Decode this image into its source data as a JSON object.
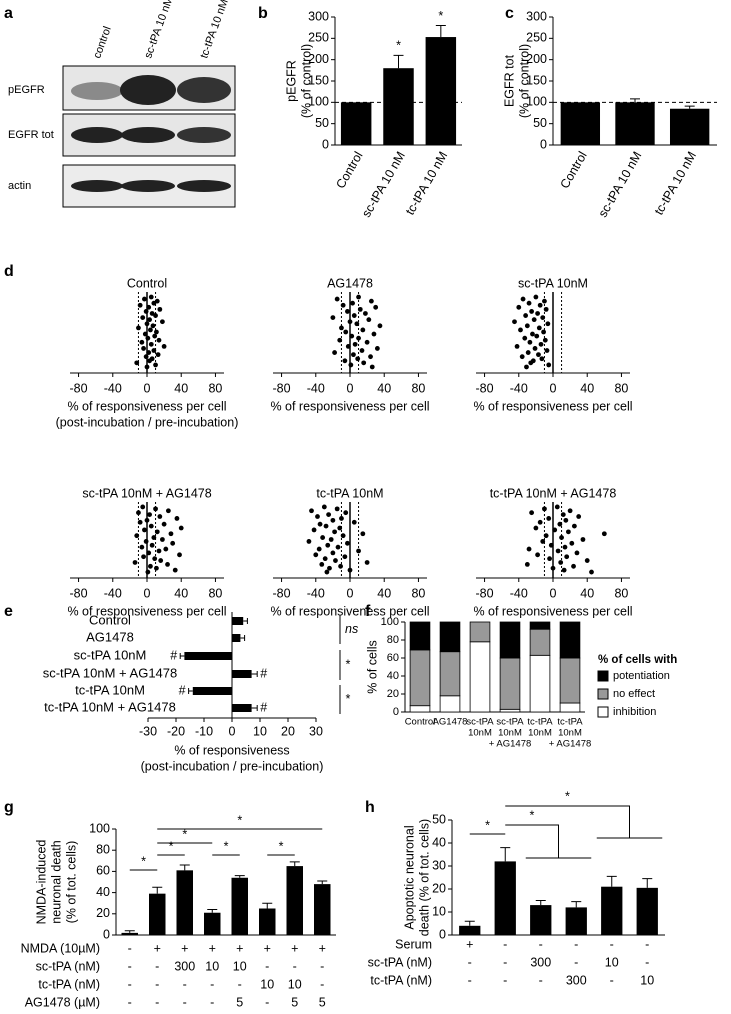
{
  "blot": {
    "panel": "a",
    "lanes": [
      "control",
      "sc-tPA 10 nM",
      "tc-tPA 10 nM"
    ],
    "rows": [
      "pEGFR",
      "EGFR tot",
      "actin"
    ]
  },
  "chart_data": [
    {
      "type": "bar",
      "panel": "b",
      "ylabel": [
        "pEGFR",
        "(% of control)"
      ],
      "categories": [
        "Control",
        "sc-tPA 10 nM",
        "tc-tPA 10 nM"
      ],
      "values": [
        100,
        180,
        253
      ],
      "errors": [
        null,
        30,
        27
      ],
      "bar_labels": [
        null,
        "*",
        "*"
      ],
      "color": "#000000",
      "ylim": [
        0,
        300
      ],
      "yticks": [
        0,
        50,
        100,
        150,
        200,
        250,
        300
      ],
      "reference_line": 100
    },
    {
      "type": "bar",
      "panel": "c",
      "ylabel": [
        "EGFR tot",
        "(% of control)"
      ],
      "categories": [
        "Control",
        "sc-tPA 10 nM",
        "tc-tPA 10 nM"
      ],
      "values": [
        100,
        100,
        85
      ],
      "errors": [
        null,
        8,
        6
      ],
      "color": "#000000",
      "ylim": [
        0,
        300
      ],
      "yticks": [
        0,
        50,
        100,
        150,
        200,
        250,
        300
      ],
      "reference_line": 100
    },
    {
      "type": "strip",
      "panel": "d",
      "title": "Control",
      "xlabel": [
        "% of responsiveness  per cell",
        "(post-incubation / pre-incubation)"
      ],
      "values": [
        5,
        -3,
        12,
        8,
        -8,
        2,
        15,
        -1,
        6,
        10,
        -5,
        3,
        18,
        0,
        7,
        -10,
        4,
        11,
        -2,
        9,
        1,
        14,
        -6,
        5,
        20,
        -4,
        8,
        2,
        13,
        -1,
        6,
        3,
        -12,
        10,
        0
      ],
      "xlim": [
        -90,
        90
      ],
      "xticks": [
        -80,
        -40,
        0,
        40,
        80
      ],
      "reference_lines": [
        -10,
        10
      ]
    },
    {
      "type": "strip",
      "title": "AG1478",
      "xlabel": [
        "% of responsiveness  per cell"
      ],
      "values": [
        10,
        -15,
        25,
        3,
        -8,
        30,
        12,
        -3,
        18,
        5,
        -20,
        22,
        0,
        8,
        35,
        -10,
        15,
        -5,
        28,
        2,
        10,
        -12,
        20,
        6,
        -2,
        32,
        14,
        -18,
        4,
        24,
        9,
        -6,
        16,
        1,
        26
      ],
      "xlim": [
        -90,
        90
      ],
      "xticks": [
        -80,
        -40,
        0,
        40,
        80
      ],
      "reference_lines": [
        -10,
        10
      ]
    },
    {
      "type": "strip",
      "title": "sc-tPA 10nM",
      "xlabel": [
        "% of responsiveness  per cell"
      ],
      "values": [
        -20,
        -35,
        -10,
        -28,
        -15,
        -40,
        -8,
        -25,
        -18,
        -32,
        -12,
        -22,
        -45,
        -6,
        -30,
        -16,
        -38,
        -11,
        -24,
        -19,
        -33,
        -9,
        -27,
        -14,
        -42,
        -21,
        -7,
        -29,
        -17,
        -36,
        -13,
        -23,
        -26,
        -5,
        -31
      ],
      "xlim": [
        -90,
        90
      ],
      "xticks": [
        -80,
        -40,
        0,
        40,
        80
      ],
      "reference_lines": [
        -10,
        10
      ]
    },
    {
      "type": "strip",
      "title": "sc-tPA 10nM + AG1478",
      "xlabel": [
        "% of responsiveness  per cell"
      ],
      "values": [
        -5,
        10,
        25,
        -10,
        3,
        15,
        35,
        0,
        -8,
        20,
        5,
        40,
        -3,
        12,
        28,
        -12,
        8,
        18,
        -1,
        30,
        6,
        -6,
        22,
        14,
        2,
        38,
        -4,
        9,
        16,
        -14,
        24,
        4,
        11,
        33,
        1
      ],
      "xlim": [
        -90,
        90
      ],
      "xticks": [
        -80,
        -40,
        0,
        40,
        80
      ],
      "reference_lines": [
        -10,
        10
      ]
    },
    {
      "type": "strip",
      "title": "tc-tPA 10nM",
      "xlabel": [
        "% of responsiveness  per cell"
      ],
      "values": [
        -30,
        -15,
        -45,
        -5,
        -25,
        -38,
        -10,
        -20,
        5,
        -35,
        -28,
        -12,
        -42,
        -18,
        15,
        -8,
        -32,
        -22,
        -48,
        -3,
        -26,
        -14,
        -36,
        10,
        -20,
        -40,
        -6,
        -29,
        -17,
        20,
        -33,
        -11,
        -24,
        0,
        -27
      ],
      "xlim": [
        -90,
        90
      ],
      "xticks": [
        -80,
        -40,
        0,
        40,
        80
      ],
      "reference_lines": [
        -10,
        10
      ]
    },
    {
      "type": "strip",
      "title": "tc-tPA 10nM + AG1478",
      "xlabel": [
        "% of responsiveness  per cell"
      ],
      "values": [
        5,
        -10,
        20,
        -25,
        12,
        30,
        -5,
        15,
        -15,
        8,
        25,
        -20,
        2,
        18,
        60,
        -8,
        10,
        35,
        -12,
        22,
        -2,
        14,
        -28,
        6,
        28,
        -18,
        16,
        -4,
        40,
        9,
        -30,
        24,
        0,
        13,
        45
      ],
      "xlim": [
        -90,
        90
      ],
      "xticks": [
        -80,
        -40,
        0,
        40,
        80
      ],
      "reference_lines": [
        -10,
        10
      ]
    },
    {
      "type": "hbar",
      "panel": "e",
      "categories": [
        "Control",
        "AG1478",
        "sc-tPA 10nM",
        "sc-tPA 10nM + AG1478",
        "tc-tPA 10nM",
        "tc-tPA 10nM + AG1478"
      ],
      "values": [
        4,
        3,
        -17,
        7,
        -14,
        7
      ],
      "errors": [
        1.5,
        1.5,
        1.5,
        2,
        1.5,
        2
      ],
      "bar_labels": [
        null,
        null,
        "#",
        "#",
        "#",
        "#"
      ],
      "brackets": [
        "ns",
        "*",
        "*"
      ],
      "color": "#000000",
      "xlabel": [
        "% of responsiveness",
        "(post-incubation / pre-incubation)"
      ],
      "xlim": [
        -30,
        30
      ],
      "xticks": [
        -30,
        -20,
        -10,
        0,
        10,
        20,
        30
      ]
    },
    {
      "type": "stacked_bar",
      "panel": "f",
      "ylabel": "% of cells",
      "legend_title": "% of cells with",
      "categories": [
        [
          "Control"
        ],
        [
          "AG1478"
        ],
        [
          "sc-tPA",
          "10nM"
        ],
        [
          "sc-tPA",
          "10nM",
          "+ AG1478"
        ],
        [
          "tc-tPA",
          "10nM"
        ],
        [
          "tc-tPA",
          "10nM",
          "+ AG1478"
        ]
      ],
      "series": [
        {
          "name": "inhibition",
          "color": "#ffffff",
          "values": [
            7,
            18,
            78,
            3,
            63,
            10
          ]
        },
        {
          "name": "no effect",
          "color": "#999999",
          "values": [
            62,
            49,
            22,
            57,
            29,
            50
          ]
        },
        {
          "name": "potentiation",
          "color": "#000000",
          "values": [
            31,
            33,
            0,
            40,
            8,
            40
          ]
        }
      ],
      "ylim": [
        0,
        100
      ],
      "yticks": [
        0,
        20,
        40,
        60,
        80,
        100
      ]
    },
    {
      "type": "bar",
      "panel": "g",
      "ylabel": [
        "NMDA-induced",
        "neuronal death",
        "(% of tot. cells)"
      ],
      "values": [
        2,
        39,
        61,
        21,
        54,
        25,
        65,
        48
      ],
      "errors": [
        2,
        6,
        5,
        3,
        2,
        5,
        4,
        3
      ],
      "color": "#000000",
      "ylim": [
        0,
        100
      ],
      "yticks": [
        0,
        20,
        40,
        60,
        80,
        100
      ],
      "brackets": [
        "*",
        "*",
        "*",
        "*",
        "*",
        "*"
      ],
      "rows": [
        {
          "label": "NMDA (10µM)",
          "cells": [
            "-",
            "+",
            "+",
            "+",
            "+",
            "+",
            "+",
            "+"
          ]
        },
        {
          "label": "sc-tPA (nM)",
          "cells": [
            "-",
            "-",
            "300",
            "10",
            "10",
            "-",
            "-",
            "-"
          ]
        },
        {
          "label": "tc-tPA (nM)",
          "cells": [
            "-",
            "-",
            "-",
            "-",
            "-",
            "10",
            "10",
            "-"
          ]
        },
        {
          "label": "AG1478  (µM)",
          "cells": [
            "-",
            "-",
            "-",
            "-",
            "5",
            "-",
            "5",
            "5"
          ]
        }
      ]
    },
    {
      "type": "bar",
      "panel": "h",
      "ylabel": [
        "Apoptotic neuronal",
        "death (% of tot. cells)"
      ],
      "values": [
        4,
        32,
        13,
        12,
        21,
        20.5
      ],
      "errors": [
        2,
        6,
        2,
        2.5,
        4.5,
        4
      ],
      "color": "#000000",
      "ylim": [
        0,
        50
      ],
      "yticks": [
        0,
        10,
        20,
        30,
        40,
        50
      ],
      "brackets": [
        "*",
        "*",
        "*"
      ],
      "rows": [
        {
          "label": "Serum",
          "cells": [
            "+",
            "-",
            "-",
            "-",
            "-",
            "-"
          ]
        },
        {
          "label": "sc-tPA (nM)",
          "cells": [
            "-",
            "-",
            "300",
            "-",
            "10",
            "-"
          ]
        },
        {
          "label": "tc-tPA (nM)",
          "cells": [
            "-",
            "-",
            "-",
            "300",
            "-",
            "10"
          ]
        }
      ]
    }
  ]
}
